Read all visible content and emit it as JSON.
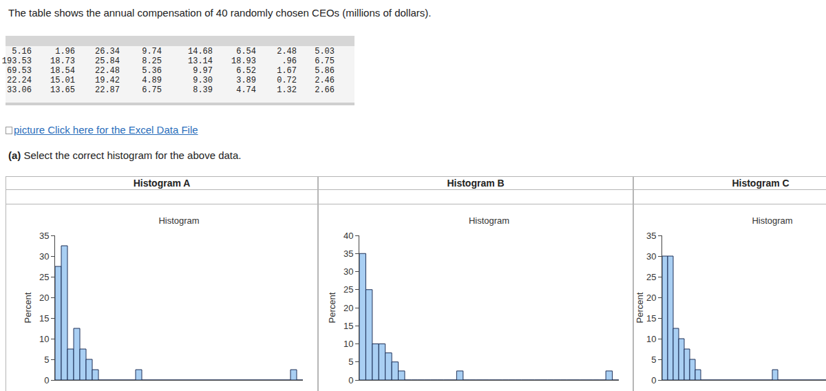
{
  "prompt": "The table shows the annual compensation of 40 randomly chosen CEOs (millions of dollars).",
  "table": {
    "rows": [
      [
        "5.16",
        "1.96",
        "26.34",
        "9.74",
        "14.68",
        "6.54",
        "2.48",
        "5.03"
      ],
      [
        "193.53",
        "18.73",
        "25.84",
        "8.25",
        "13.14",
        "18.93",
        ".96",
        "6.75"
      ],
      [
        "69.53",
        "18.54",
        "22.48",
        "5.36",
        "9.97",
        "6.52",
        "1.67",
        "5.86"
      ],
      [
        "22.24",
        "15.01",
        "19.42",
        "4.89",
        "9.30",
        "3.89",
        "0.72",
        "2.46"
      ],
      [
        "33.06",
        "13.65",
        "22.87",
        "6.75",
        "8.39",
        "4.74",
        "1.32",
        "2.66"
      ]
    ]
  },
  "link": {
    "alt": "picture",
    "text": "Click here for the Excel Data File"
  },
  "question": {
    "label": "(a)",
    "text": "Select the correct histogram for the above data."
  },
  "panels": [
    "Histogram A",
    "Histogram B",
    "Histogram C"
  ],
  "chart_data": [
    {
      "type": "histogram",
      "title": "Histogram",
      "ylabel": "Percent",
      "color": "#a9cff3",
      "tick_labels": "y",
      "bins": [
        0,
        5,
        10,
        15,
        20,
        25,
        30,
        35,
        40,
        45,
        50,
        55,
        60,
        65,
        70,
        75,
        80,
        85,
        90,
        95,
        100,
        105,
        110,
        115,
        120,
        125,
        130,
        135,
        140,
        145,
        150,
        155,
        160,
        165,
        170,
        175,
        180,
        185,
        190,
        195,
        200
      ],
      "values": [
        27.5,
        32.5,
        7.5,
        12.5,
        7.5,
        5,
        2.5,
        0,
        0,
        0,
        0,
        0,
        0,
        2.5,
        0,
        0,
        0,
        0,
        0,
        0,
        0,
        0,
        0,
        0,
        0,
        0,
        0,
        0,
        0,
        0,
        0,
        0,
        0,
        0,
        0,
        0,
        0,
        0,
        2.5,
        0
      ],
      "xlim": [
        0,
        200
      ],
      "ylim": [
        0,
        35
      ],
      "yticks": [
        0,
        5,
        10,
        15,
        20,
        25,
        30,
        35
      ]
    },
    {
      "type": "histogram",
      "title": "Histogram",
      "ylabel": "Percent",
      "color": "#a9cff3",
      "tick_labels": "y",
      "bins": [
        0,
        5,
        10,
        15,
        20,
        25,
        30,
        35,
        40,
        45,
        50,
        55,
        60,
        65,
        70,
        75,
        80,
        85,
        90,
        95,
        100,
        105,
        110,
        115,
        120,
        125,
        130,
        135,
        140,
        145,
        150,
        155,
        160,
        165,
        170,
        175,
        180,
        185,
        190,
        195,
        200
      ],
      "values": [
        35,
        25,
        10,
        10,
        7.5,
        5,
        2.5,
        0,
        0,
        0,
        0,
        0,
        0,
        0,
        0,
        2.5,
        0,
        0,
        0,
        0,
        0,
        0,
        0,
        0,
        0,
        0,
        0,
        0,
        0,
        0,
        0,
        0,
        0,
        0,
        0,
        0,
        0,
        0,
        2.5,
        0
      ],
      "xlim": [
        0,
        200
      ],
      "ylim": [
        0,
        40
      ],
      "yticks": [
        0,
        5,
        10,
        15,
        20,
        25,
        30,
        35,
        40
      ]
    },
    {
      "type": "histogram",
      "title": "Histogram",
      "ylabel": "Percent",
      "color": "#a9cff3",
      "tick_labels": "y",
      "bins": [
        0,
        5,
        10,
        15,
        20,
        25,
        30,
        35,
        40,
        45,
        50,
        55,
        60,
        65,
        70,
        75,
        80,
        85,
        90,
        95,
        100,
        105,
        110,
        115,
        120,
        125,
        130,
        135,
        140,
        145,
        150,
        155,
        160,
        165,
        170,
        175,
        180,
        185,
        190,
        195,
        200
      ],
      "values": [
        30,
        30,
        12.5,
        10,
        7.5,
        5,
        2.5,
        0,
        0,
        0,
        0,
        0,
        0,
        0,
        0,
        0,
        0,
        0,
        0,
        0,
        2.5,
        0,
        0,
        0,
        0,
        0,
        0,
        0,
        0,
        0,
        0,
        0,
        0,
        0,
        0,
        0,
        0,
        0,
        0,
        0
      ],
      "xlim": [
        0,
        200
      ],
      "ylim": [
        0,
        35
      ],
      "yticks": [
        0,
        5,
        10,
        15,
        20,
        25,
        30,
        35
      ]
    }
  ]
}
